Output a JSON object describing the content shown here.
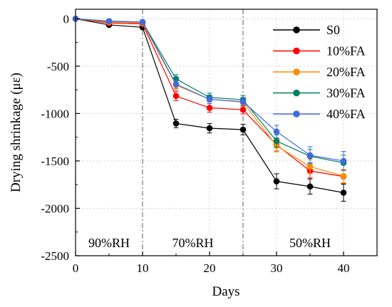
{
  "chart_data": {
    "type": "line",
    "xlabel": "Days",
    "ylabel": "Drying shrinkage (με)",
    "xlim": [
      0,
      45
    ],
    "ylim": [
      -2500,
      100
    ],
    "xticks": [
      "0",
      "10",
      "20",
      "30",
      "40"
    ],
    "yticks": [
      "0",
      "-500",
      "-1000",
      "-1500",
      "-2000",
      "-2500"
    ],
    "grid": true,
    "legend_position": "top-right",
    "dividers_x": [
      10,
      25
    ],
    "regions": [
      {
        "label": "90%RH"
      },
      {
        "label": "70%RH"
      },
      {
        "label": "50%RH"
      }
    ],
    "x": [
      0,
      5,
      10,
      15,
      20,
      25,
      30,
      35,
      40
    ],
    "series": [
      {
        "name": "S0",
        "color": "#000000",
        "values": [
          0,
          -65,
          -90,
          -1105,
          -1155,
          -1170,
          -1715,
          -1770,
          -1835
        ],
        "errors": [
          0,
          15,
          15,
          45,
          50,
          55,
          80,
          80,
          90
        ]
      },
      {
        "name": "10%FA",
        "color": "#ff0000",
        "values": [
          0,
          -45,
          -55,
          -815,
          -940,
          -960,
          -1330,
          -1605,
          -1665
        ],
        "errors": [
          0,
          12,
          12,
          50,
          45,
          45,
          65,
          75,
          70
        ]
      },
      {
        "name": "20%FA",
        "color": "#ff8c00",
        "values": [
          0,
          -35,
          -45,
          -700,
          -850,
          -880,
          -1340,
          -1560,
          -1660
        ],
        "errors": [
          0,
          12,
          12,
          50,
          45,
          45,
          65,
          75,
          70
        ]
      },
      {
        "name": "30%FA",
        "color": "#008060",
        "values": [
          0,
          -25,
          -35,
          -635,
          -830,
          -855,
          -1290,
          -1450,
          -1520
        ],
        "errors": [
          0,
          12,
          12,
          45,
          45,
          45,
          65,
          70,
          80
        ]
      },
      {
        "name": "40%FA",
        "color": "#4169e1",
        "values": [
          0,
          -25,
          -35,
          -690,
          -850,
          -875,
          -1190,
          -1440,
          -1500
        ],
        "errors": [
          0,
          12,
          12,
          45,
          45,
          45,
          65,
          90,
          100
        ]
      }
    ]
  }
}
